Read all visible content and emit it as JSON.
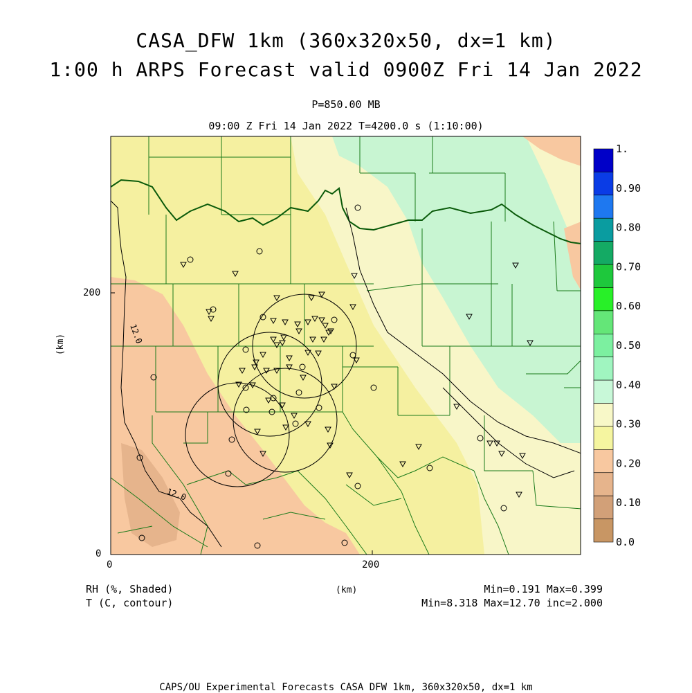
{
  "header": {
    "title_line1": "CASA_DFW 1km (360x320x50, dx=1 km)",
    "title_line2": "1:00 h ARPS Forecast valid 0900Z Fri 14 Jan 2022",
    "level": "P=850.00 MB",
    "time_line": "09:00 Z Fri 14 Jan 2022    T=4200.0 s (1:10:00)"
  },
  "axes": {
    "x_ticks": [
      "0",
      "200"
    ],
    "y_ticks": [
      "0",
      "200"
    ],
    "x_unit": "(km)",
    "y_unit": "(km)"
  },
  "colorbar": {
    "labels": [
      "1.",
      "0.90",
      "0.80",
      "0.70",
      "0.60",
      "0.50",
      "0.40",
      "0.30",
      "0.20",
      "0.10",
      "0.0"
    ],
    "colors": [
      "#0000c8",
      "#0a3ce6",
      "#1e78f0",
      "#0a9ca0",
      "#14aa64",
      "#1ec83c",
      "#28f028",
      "#64e678",
      "#7cf0a0",
      "#a0f5c0",
      "#c8f8d8",
      "#f8f8c8",
      "#f5f5a0",
      "#f8c8a0",
      "#e6b48c",
      "#d2a078",
      "#c89664"
    ]
  },
  "contour_labels": [
    "12.0",
    "12.0"
  ],
  "footer": {
    "left_line1": "RH (%, Shaded)",
    "left_line2": "T (C, contour)",
    "center": "(km)",
    "right_line1": "Min=0.191 Max=0.399",
    "right_line2": "Min=8.318 Max=12.70 inc=2.000",
    "credit": "CAPS/OU Experimental Forecasts  CASA DFW 1km, 360x320x50, dx=1 km"
  }
}
